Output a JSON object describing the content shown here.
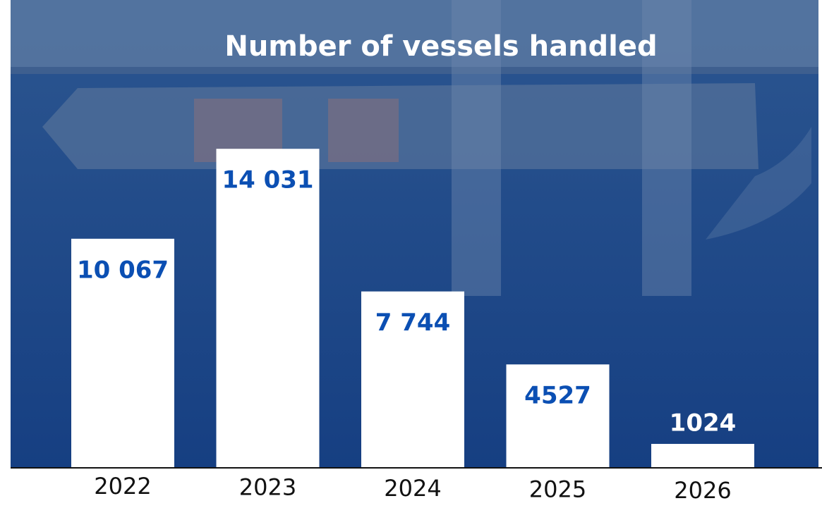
{
  "chart_data": {
    "type": "bar",
    "title": "Number of vessels handled",
    "categories": [
      "2022",
      "2023",
      "2024",
      "2025",
      "2026"
    ],
    "values": [
      10067,
      14031,
      7744,
      4527,
      1024
    ],
    "value_labels": [
      "10 067",
      "14 031",
      "7 744",
      "4527",
      "1024"
    ],
    "color": "#ffffff",
    "label_color": "#0b4fb3",
    "ylim": [
      0,
      15000
    ]
  }
}
